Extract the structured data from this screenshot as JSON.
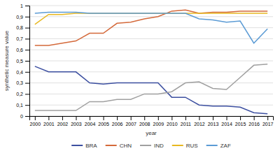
{
  "chart_data": {
    "type": "line",
    "xlabel": "year",
    "ylabel": "synthetic measure value",
    "x": [
      2000,
      2001,
      2002,
      2003,
      2004,
      2005,
      2006,
      2007,
      2008,
      2009,
      2010,
      2011,
      2012,
      2013,
      2014,
      2015,
      2016,
      2017
    ],
    "series": [
      {
        "name": "BRA",
        "color": "#3c4fa0",
        "values": [
          0.45,
          0.4,
          0.4,
          0.4,
          0.3,
          0.29,
          0.3,
          0.3,
          0.3,
          0.3,
          0.17,
          0.17,
          0.1,
          0.09,
          0.09,
          0.08,
          0.03,
          0.02
        ]
      },
      {
        "name": "CHN",
        "color": "#d4693a",
        "values": [
          0.64,
          0.64,
          0.66,
          0.68,
          0.75,
          0.75,
          0.84,
          0.85,
          0.88,
          0.9,
          0.95,
          0.96,
          0.93,
          0.94,
          0.94,
          0.95,
          0.95,
          0.95
        ]
      },
      {
        "name": "IND",
        "color": "#a0a0a0",
        "values": [
          0.05,
          0.05,
          0.05,
          0.05,
          0.13,
          0.13,
          0.15,
          0.15,
          0.2,
          0.2,
          0.22,
          0.3,
          0.31,
          0.25,
          0.24,
          0.35,
          0.46,
          0.47
        ]
      },
      {
        "name": "RUS",
        "color": "#e8b820",
        "values": [
          0.83,
          0.92,
          0.92,
          0.93,
          0.93,
          0.93,
          0.93,
          0.93,
          0.93,
          0.93,
          0.93,
          0.93,
          0.93,
          0.93,
          0.93,
          0.93,
          0.93,
          0.93
        ]
      },
      {
        "name": "ZAF",
        "color": "#5b9bd5",
        "values": [
          0.93,
          0.94,
          0.94,
          0.94,
          0.93,
          0.93,
          0.93,
          0.93,
          0.93,
          0.93,
          0.93,
          0.93,
          0.88,
          0.87,
          0.85,
          0.86,
          0.66,
          0.79
        ]
      }
    ],
    "xlim": [
      1999.6,
      2017.4
    ],
    "xticks": [
      2000,
      2001,
      2002,
      2003,
      2004,
      2005,
      2006,
      2007,
      2008,
      2009,
      2010,
      2011,
      2012,
      2013,
      2014,
      2015,
      2016,
      2017
    ],
    "ylim": [
      0,
      1.0
    ],
    "yticks": [
      0,
      {
        "value": 0.1,
        "label": "0,1"
      },
      {
        "value": 0.2,
        "label": "0,2"
      },
      {
        "value": 0.3,
        "label": "0,3"
      },
      {
        "value": 0.4,
        "label": "0,4"
      },
      {
        "value": 0.5,
        "label": "0,5"
      },
      {
        "value": 0.6,
        "label": "0,6"
      },
      {
        "value": 0.7,
        "label": "0,7"
      },
      {
        "value": 0.8,
        "label": "0,8"
      },
      {
        "value": 0.9,
        "label": "0,9"
      },
      1
    ],
    "grid": true,
    "legend": "bottom"
  }
}
